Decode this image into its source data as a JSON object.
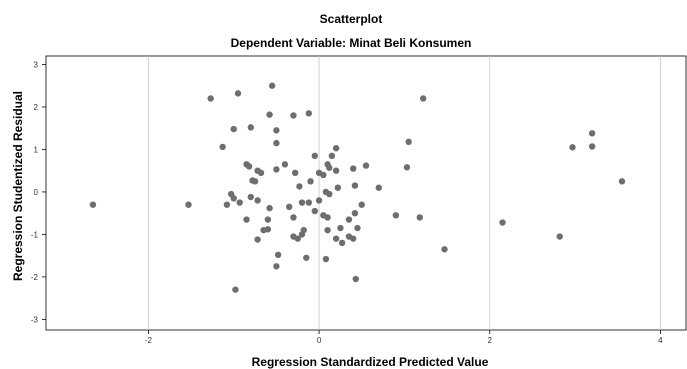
{
  "chart_data": {
    "type": "scatter",
    "title": "Scatterplot",
    "subtitle": "Dependent Variable: Minat Beli Konsumen",
    "xlabel": "Regression Standardized Predicted Value",
    "ylabel": "Regression Studentized Residual",
    "xlim": [
      -3.2,
      4.3
    ],
    "ylim": [
      -3.25,
      3.2
    ],
    "xticks": [
      -2,
      0,
      2,
      4
    ],
    "yticks": [
      3,
      2,
      1,
      0,
      -1,
      -2,
      -3
    ],
    "grid": "x-major",
    "point_color": "#6e6e6e",
    "points": [
      [
        -2.65,
        -0.3
      ],
      [
        -1.53,
        -0.3
      ],
      [
        -1.27,
        2.2
      ],
      [
        -0.95,
        2.32
      ],
      [
        -0.55,
        2.5
      ],
      [
        -0.8,
        1.52
      ],
      [
        -1.0,
        1.48
      ],
      [
        -1.13,
        1.06
      ],
      [
        -0.58,
        1.82
      ],
      [
        -0.5,
        1.45
      ],
      [
        -0.3,
        1.8
      ],
      [
        -0.12,
        1.85
      ],
      [
        -0.5,
        1.15
      ],
      [
        -0.05,
        0.85
      ],
      [
        0.2,
        1.03
      ],
      [
        0.1,
        0.65
      ],
      [
        0.15,
        0.85
      ],
      [
        -0.4,
        0.65
      ],
      [
        -0.85,
        0.65
      ],
      [
        -0.82,
        0.6
      ],
      [
        -0.72,
        0.5
      ],
      [
        -0.68,
        0.45
      ],
      [
        -0.5,
        0.53
      ],
      [
        -0.78,
        0.27
      ],
      [
        -0.75,
        0.25
      ],
      [
        -0.58,
        -0.38
      ],
      [
        -0.28,
        0.45
      ],
      [
        -0.23,
        0.13
      ],
      [
        -0.1,
        0.25
      ],
      [
        0.0,
        0.45
      ],
      [
        0.05,
        0.4
      ],
      [
        0.12,
        0.57
      ],
      [
        0.2,
        0.5
      ],
      [
        0.4,
        0.55
      ],
      [
        0.55,
        0.62
      ],
      [
        0.7,
        0.1
      ],
      [
        0.42,
        0.15
      ],
      [
        0.22,
        0.1
      ],
      [
        0.08,
        0.0
      ],
      [
        0.12,
        -0.05
      ],
      [
        -1.03,
        -0.05
      ],
      [
        -1.0,
        -0.15
      ],
      [
        -0.93,
        -0.25
      ],
      [
        -0.8,
        -0.12
      ],
      [
        -0.72,
        -0.2
      ],
      [
        -0.85,
        -0.65
      ],
      [
        -0.6,
        -0.65
      ],
      [
        -0.6,
        -0.88
      ],
      [
        -0.65,
        -0.9
      ],
      [
        -0.72,
        -1.12
      ],
      [
        -0.35,
        -0.35
      ],
      [
        -0.2,
        -0.25
      ],
      [
        -0.12,
        -0.25
      ],
      [
        -0.3,
        -0.6
      ],
      [
        -0.18,
        -0.9
      ],
      [
        -0.2,
        -1.0
      ],
      [
        -0.3,
        -1.05
      ],
      [
        -0.25,
        -1.1
      ],
      [
        0.0,
        -0.2
      ],
      [
        0.05,
        -0.55
      ],
      [
        0.1,
        -0.6
      ],
      [
        -0.05,
        -0.45
      ],
      [
        0.25,
        -0.85
      ],
      [
        0.2,
        -1.1
      ],
      [
        0.27,
        -1.2
      ],
      [
        0.35,
        -1.05
      ],
      [
        0.4,
        -1.1
      ],
      [
        0.45,
        -0.85
      ],
      [
        0.42,
        -0.5
      ],
      [
        0.5,
        -0.3
      ],
      [
        0.35,
        -0.65
      ],
      [
        0.1,
        -0.9
      ],
      [
        -0.15,
        -1.55
      ],
      [
        -0.48,
        -1.48
      ],
      [
        -0.5,
        -1.75
      ],
      [
        0.08,
        -1.58
      ],
      [
        0.43,
        -2.05
      ],
      [
        -0.98,
        -2.3
      ],
      [
        -1.08,
        -0.3
      ],
      [
        0.9,
        -0.55
      ],
      [
        1.18,
        -0.6
      ],
      [
        1.47,
        -1.35
      ],
      [
        1.03,
        0.58
      ],
      [
        1.05,
        1.18
      ],
      [
        1.22,
        2.2
      ],
      [
        2.15,
        -0.72
      ],
      [
        2.82,
        -1.05
      ],
      [
        2.97,
        1.05
      ],
      [
        3.2,
        1.07
      ],
      [
        3.2,
        1.38
      ],
      [
        3.55,
        0.25
      ]
    ]
  }
}
